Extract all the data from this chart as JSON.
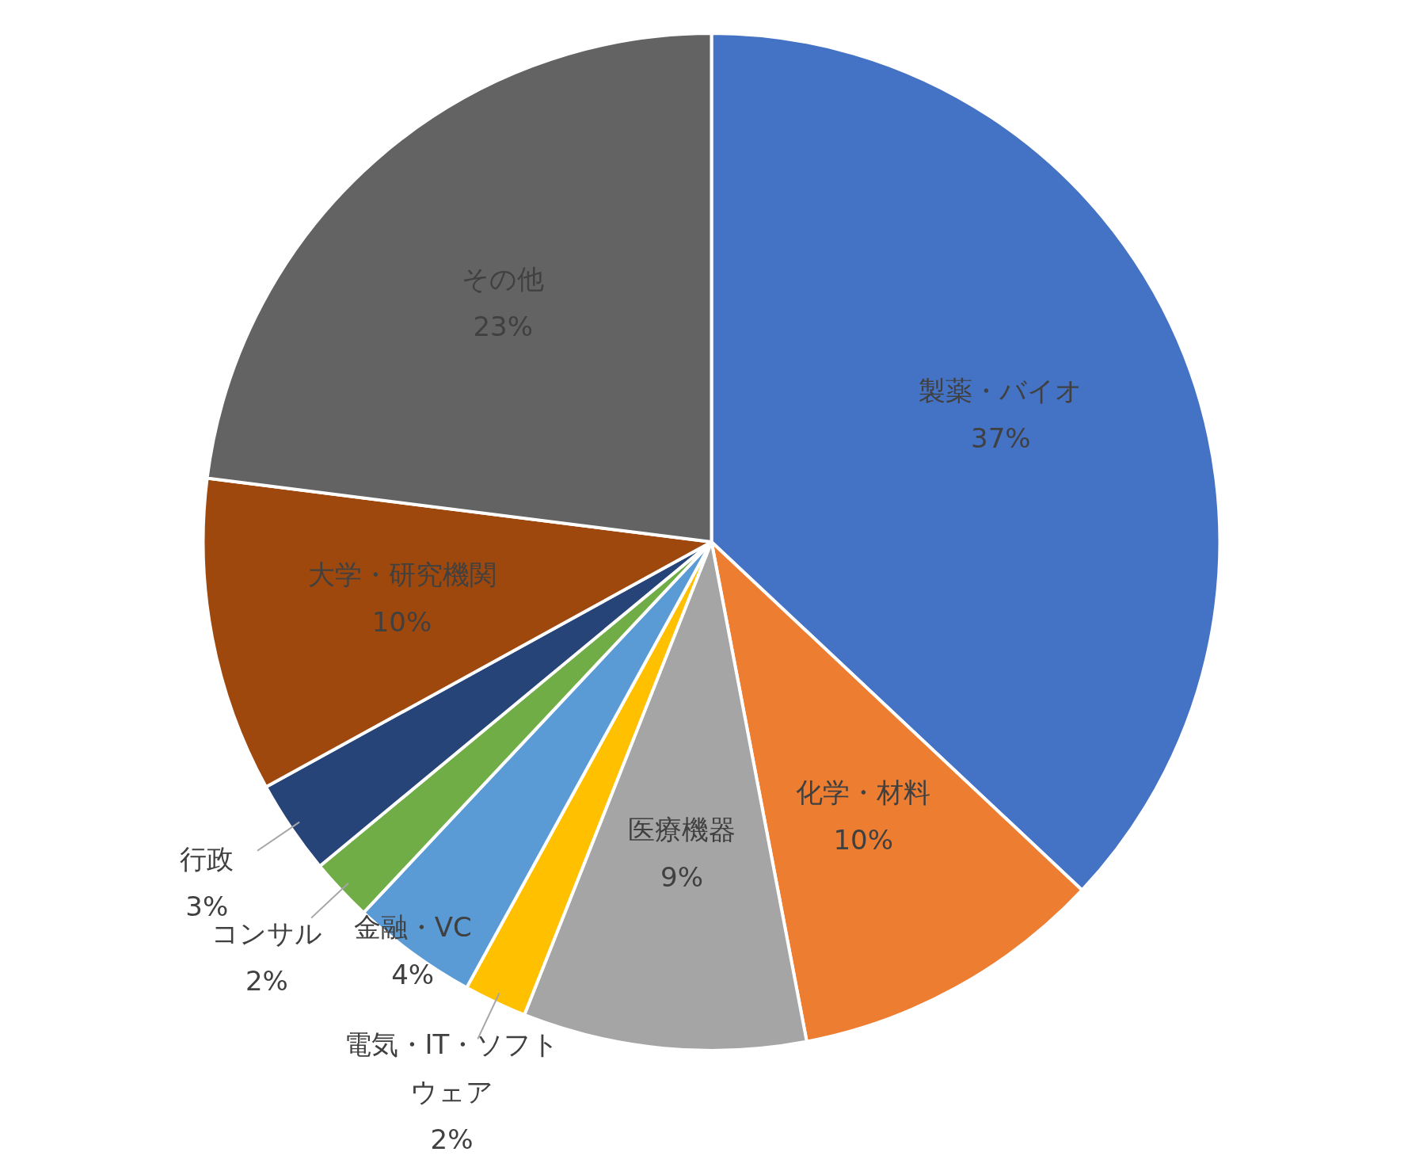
{
  "chart_data": {
    "type": "pie",
    "categories": [
      "製薬・バイオ",
      "化学・材料",
      "医療機器",
      "電気・IT・ソフトウェア",
      "金融・VC",
      "コンサル",
      "行政",
      "大学・研究機関",
      "その他"
    ],
    "values": [
      37,
      10,
      9,
      2,
      4,
      2,
      3,
      10,
      23
    ],
    "value_labels": [
      "37%",
      "10%",
      "9%",
      "2%",
      "4%",
      "2%",
      "3%",
      "10%",
      "23%"
    ],
    "colors": [
      "#4472c4",
      "#ed7d31",
      "#a5a5a5",
      "#ffc000",
      "#5b9bd5",
      "#70ad47",
      "#264478",
      "#9e480e",
      "#636363"
    ],
    "legend": false
  }
}
